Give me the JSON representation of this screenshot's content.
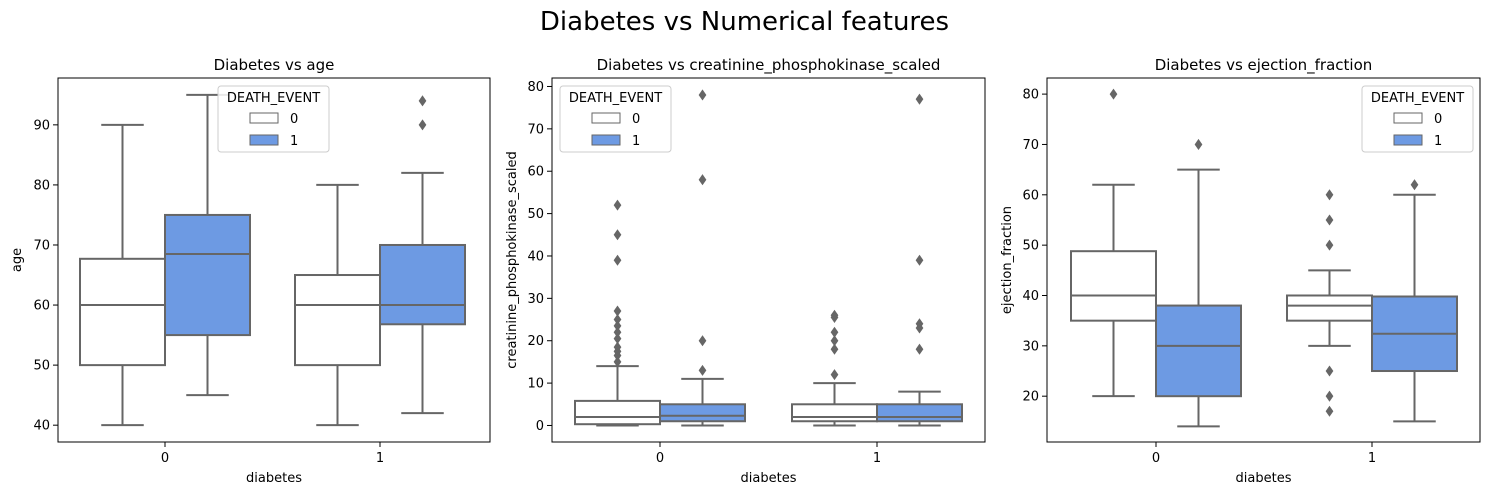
{
  "suptitle": "Diabetes vs Numerical features",
  "colors": {
    "box_0": "#ffffff",
    "box_1": "#6d9ae3",
    "line": "#666666",
    "axes": "#000000",
    "legend_border": "#cccccc"
  },
  "legend": {
    "title": "DEATH_EVENT",
    "entries": [
      "0",
      "1"
    ]
  },
  "chart_data": [
    {
      "type": "box",
      "title": "Diabetes vs age",
      "xlabel": "diabetes",
      "ylabel": "age",
      "categories": [
        "0",
        "1"
      ],
      "hue": [
        "0",
        "1"
      ],
      "ylim": [
        37.2,
        97.8
      ],
      "yticks": [
        40,
        50,
        60,
        70,
        80,
        90
      ],
      "legend_position": "top-center",
      "boxes": [
        {
          "category": "0",
          "hue": "0",
          "whislo": 40,
          "q1": 50,
          "med": 60,
          "q3": 67.7,
          "whishi": 90,
          "fliers": []
        },
        {
          "category": "0",
          "hue": "1",
          "whislo": 45,
          "q1": 55,
          "med": 68.5,
          "q3": 75,
          "whishi": 95,
          "fliers": []
        },
        {
          "category": "1",
          "hue": "0",
          "whislo": 40,
          "q1": 50,
          "med": 60,
          "q3": 65,
          "whishi": 80,
          "fliers": []
        },
        {
          "category": "1",
          "hue": "1",
          "whislo": 42,
          "q1": 56.8,
          "med": 60,
          "q3": 70,
          "whishi": 82,
          "fliers": [
            90,
            94
          ]
        }
      ]
    },
    {
      "type": "box",
      "title": "Diabetes vs creatinine_phosphokinase_scaled",
      "xlabel": "diabetes",
      "ylabel": "creatinine_phosphokinase_scaled",
      "categories": [
        "0",
        "1"
      ],
      "hue": [
        "0",
        "1"
      ],
      "ylim": [
        -3.9,
        82
      ],
      "yticks": [
        0,
        10,
        20,
        30,
        40,
        50,
        60,
        70,
        80
      ],
      "legend_position": "top-left",
      "boxes": [
        {
          "category": "0",
          "hue": "0",
          "whislo": 0,
          "q1": 0.3,
          "med": 2,
          "q3": 5.8,
          "whishi": 14,
          "fliers": [
            15,
            16.5,
            17.5,
            18.5,
            20.5,
            22,
            23.5,
            25,
            27,
            39,
            45,
            52
          ]
        },
        {
          "category": "0",
          "hue": "1",
          "whislo": 0,
          "q1": 1,
          "med": 2.3,
          "q3": 5,
          "whishi": 11,
          "fliers": [
            13,
            20,
            58,
            78
          ]
        },
        {
          "category": "1",
          "hue": "0",
          "whislo": 0,
          "q1": 1,
          "med": 2,
          "q3": 5,
          "whishi": 10,
          "fliers": [
            12,
            18,
            20,
            22,
            25.5,
            26
          ]
        },
        {
          "category": "1",
          "hue": "1",
          "whislo": 0,
          "q1": 1,
          "med": 2,
          "q3": 5,
          "whishi": 8,
          "fliers": [
            18,
            23,
            24,
            39,
            77
          ]
        }
      ]
    },
    {
      "type": "box",
      "title": "Diabetes vs ejection_fraction",
      "xlabel": "diabetes",
      "ylabel": "ejection_fraction",
      "categories": [
        "0",
        "1"
      ],
      "hue": [
        "0",
        "1"
      ],
      "ylim": [
        10.9,
        83.2
      ],
      "yticks": [
        20,
        30,
        40,
        50,
        60,
        70,
        80
      ],
      "legend_position": "top-right",
      "boxes": [
        {
          "category": "0",
          "hue": "0",
          "whislo": 20,
          "q1": 35,
          "med": 40,
          "q3": 48.8,
          "whishi": 62,
          "fliers": [
            80
          ]
        },
        {
          "category": "0",
          "hue": "1",
          "whislo": 14,
          "q1": 20,
          "med": 30,
          "q3": 38,
          "whishi": 65,
          "fliers": [
            70
          ]
        },
        {
          "category": "1",
          "hue": "0",
          "whislo": 30,
          "q1": 35,
          "med": 38,
          "q3": 40,
          "whishi": 45,
          "fliers": [
            17,
            20,
            25,
            50,
            55,
            60
          ]
        },
        {
          "category": "1",
          "hue": "1",
          "whislo": 15,
          "q1": 25,
          "med": 32.4,
          "q3": 39.8,
          "whishi": 60,
          "fliers": [
            62
          ]
        }
      ]
    }
  ]
}
